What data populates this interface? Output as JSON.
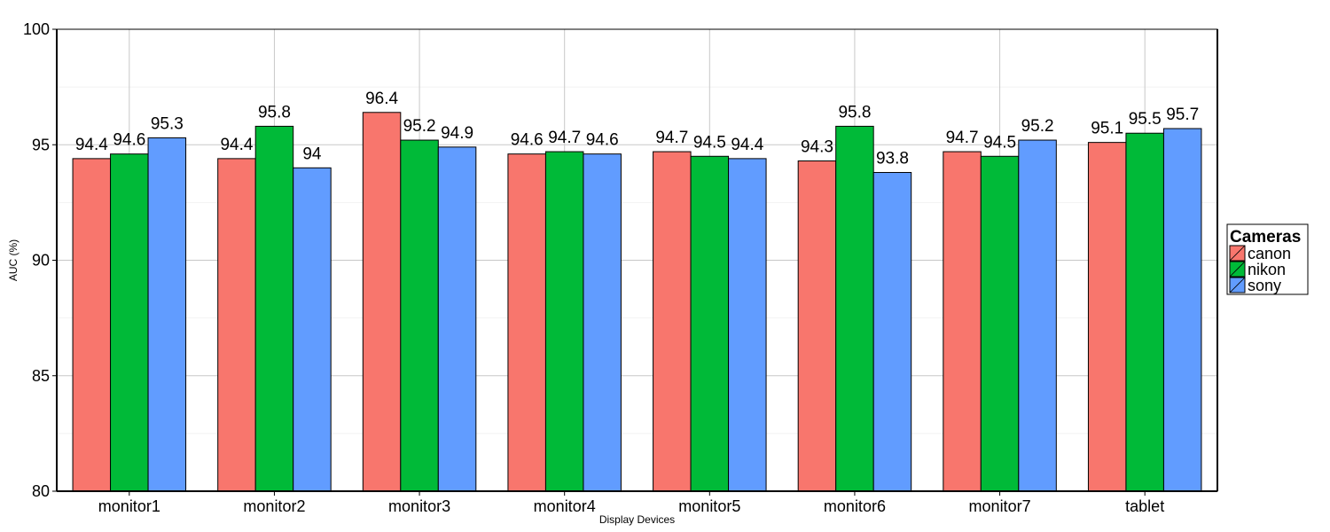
{
  "chart_data": {
    "type": "bar",
    "categories": [
      "monitor1",
      "monitor2",
      "monitor3",
      "monitor4",
      "monitor5",
      "monitor6",
      "monitor7",
      "tablet"
    ],
    "series": [
      {
        "name": "canon",
        "color": "#F8766D",
        "values": [
          94.4,
          94.4,
          96.4,
          94.6,
          94.7,
          94.3,
          94.7,
          95.1
        ]
      },
      {
        "name": "nikon",
        "color": "#00BA38",
        "values": [
          94.6,
          95.8,
          95.2,
          94.7,
          94.5,
          95.8,
          94.5,
          95.5
        ]
      },
      {
        "name": "sony",
        "color": "#619CFF",
        "values": [
          95.3,
          94.0,
          94.9,
          94.6,
          94.4,
          93.8,
          95.2,
          95.7
        ]
      }
    ],
    "data_labels": [
      [
        "94.4",
        "94.6",
        "95.3"
      ],
      [
        "94.4",
        "95.8",
        "94"
      ],
      [
        "96.4",
        "95.2",
        "94.9"
      ],
      [
        "94.6",
        "94.7",
        "94.6"
      ],
      [
        "94.7",
        "94.5",
        "94.4"
      ],
      [
        "94.3",
        "95.8",
        "93.8"
      ],
      [
        "94.7",
        "94.5",
        "95.2"
      ],
      [
        "95.1",
        "95.5",
        "95.7"
      ]
    ],
    "xlabel": "Display Devices",
    "ylabel": "AUC (%)",
    "ylim": [
      80,
      100
    ],
    "yticks": [
      80,
      85,
      90,
      95,
      100
    ],
    "grid": true,
    "legend": {
      "title": "Cameras",
      "placement": "right"
    }
  }
}
